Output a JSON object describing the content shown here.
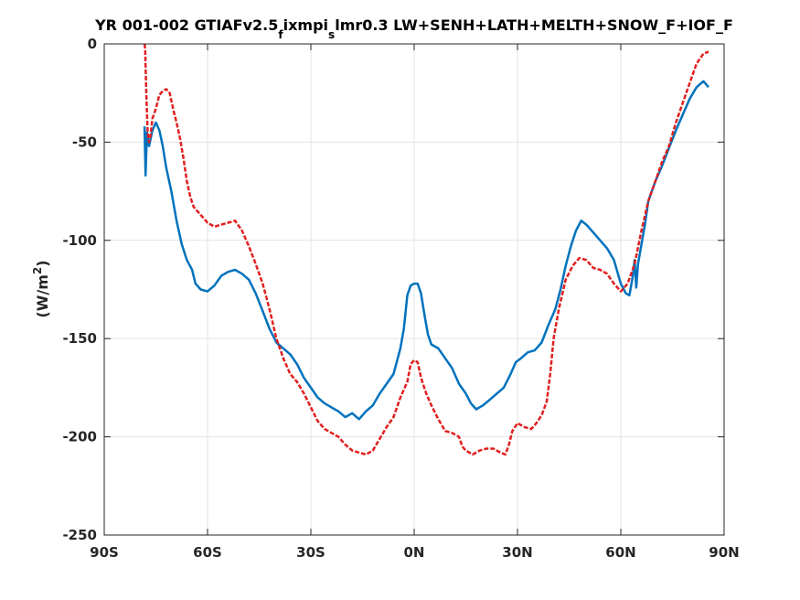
{
  "chart_data": {
    "type": "line",
    "title": {
      "part1": "YR 001-002 GTIAFv2.5",
      "sub1": "f",
      "part2": "ixmpi",
      "sub2": "s",
      "part3": "lmr0.3 LW+SENH+LATH+MELTH+SNOW_F+IOF_F"
    },
    "xlabel": "",
    "ylabel": {
      "main": "(W/m",
      "sup": "2",
      "close": ")"
    },
    "xlim": [
      -90,
      90
    ],
    "ylim": [
      -250,
      0
    ],
    "xticks": [
      {
        "value": -90,
        "label": "90S"
      },
      {
        "value": -60,
        "label": "60S"
      },
      {
        "value": -30,
        "label": "30S"
      },
      {
        "value": 0,
        "label": "0N"
      },
      {
        "value": 30,
        "label": "30N"
      },
      {
        "value": 60,
        "label": "60N"
      },
      {
        "value": 90,
        "label": "90N"
      }
    ],
    "yticks": [
      {
        "value": 0,
        "label": "0"
      },
      {
        "value": -50,
        "label": "-50"
      },
      {
        "value": -100,
        "label": "-100"
      },
      {
        "value": -150,
        "label": "-150"
      },
      {
        "value": -200,
        "label": "-200"
      },
      {
        "value": -250,
        "label": "-250"
      }
    ],
    "grid": true,
    "series": [
      {
        "color": "#0072BD",
        "style": "solid",
        "points": [
          [
            -78.3,
            -42
          ],
          [
            -78.0,
            -67
          ],
          [
            -77.6,
            -45
          ],
          [
            -77.0,
            -52
          ],
          [
            -76.0,
            -44
          ],
          [
            -75.0,
            -40
          ],
          [
            -74.0,
            -44
          ],
          [
            -73.0,
            -52
          ],
          [
            -72.0,
            -63
          ],
          [
            -70.5,
            -75
          ],
          [
            -69.0,
            -90
          ],
          [
            -67.5,
            -102
          ],
          [
            -66.0,
            -110
          ],
          [
            -64.5,
            -115
          ],
          [
            -63.5,
            -122
          ],
          [
            -62.0,
            -125
          ],
          [
            -60.0,
            -126
          ],
          [
            -58.0,
            -123
          ],
          [
            -56.0,
            -118
          ],
          [
            -54.0,
            -116
          ],
          [
            -52.0,
            -115
          ],
          [
            -50.0,
            -117
          ],
          [
            -48.0,
            -120
          ],
          [
            -46.0,
            -127
          ],
          [
            -44.0,
            -136
          ],
          [
            -42.0,
            -145
          ],
          [
            -40.0,
            -152
          ],
          [
            -38.0,
            -155
          ],
          [
            -36.0,
            -158
          ],
          [
            -34.0,
            -163
          ],
          [
            -32.0,
            -170
          ],
          [
            -30.0,
            -175
          ],
          [
            -28.0,
            -180
          ],
          [
            -26.0,
            -183
          ],
          [
            -24.0,
            -185
          ],
          [
            -22.0,
            -187
          ],
          [
            -20.0,
            -190
          ],
          [
            -18.0,
            -188
          ],
          [
            -16.0,
            -191
          ],
          [
            -14.0,
            -187
          ],
          [
            -12.0,
            -184
          ],
          [
            -10.0,
            -178
          ],
          [
            -8.0,
            -173
          ],
          [
            -6.0,
            -168
          ],
          [
            -4.0,
            -155
          ],
          [
            -3.0,
            -145
          ],
          [
            -2.0,
            -128
          ],
          [
            -1.0,
            -123
          ],
          [
            0.0,
            -122
          ],
          [
            1.0,
            -122
          ],
          [
            2.0,
            -127
          ],
          [
            3.0,
            -138
          ],
          [
            4.0,
            -148
          ],
          [
            5.0,
            -153
          ],
          [
            7.0,
            -155
          ],
          [
            9.0,
            -160
          ],
          [
            11.0,
            -165
          ],
          [
            13.0,
            -173
          ],
          [
            15.0,
            -178
          ],
          [
            16.5,
            -183
          ],
          [
            18.0,
            -186
          ],
          [
            20.0,
            -184
          ],
          [
            22.0,
            -181
          ],
          [
            24.0,
            -178
          ],
          [
            26.0,
            -175
          ],
          [
            28.0,
            -168
          ],
          [
            29.5,
            -162
          ],
          [
            31.0,
            -160
          ],
          [
            33.0,
            -157
          ],
          [
            35.0,
            -156
          ],
          [
            37.0,
            -152
          ],
          [
            39.0,
            -143
          ],
          [
            41.0,
            -135
          ],
          [
            42.5,
            -125
          ],
          [
            44.0,
            -113
          ],
          [
            45.5,
            -103
          ],
          [
            47.0,
            -95
          ],
          [
            48.5,
            -90
          ],
          [
            50.0,
            -92
          ],
          [
            52.0,
            -96
          ],
          [
            54.0,
            -100
          ],
          [
            56.0,
            -104
          ],
          [
            58.0,
            -110
          ],
          [
            60.0,
            -122
          ],
          [
            61.5,
            -127
          ],
          [
            62.5,
            -128
          ],
          [
            63.5,
            -118
          ],
          [
            64.0,
            -110
          ],
          [
            64.5,
            -124
          ],
          [
            65.0,
            -112
          ],
          [
            66.0,
            -102
          ],
          [
            67.0,
            -92
          ],
          [
            68.0,
            -80
          ],
          [
            70.0,
            -70
          ],
          [
            72.0,
            -62
          ],
          [
            74.0,
            -53
          ],
          [
            76.0,
            -44
          ],
          [
            78.0,
            -36
          ],
          [
            80.0,
            -28
          ],
          [
            82.0,
            -22
          ],
          [
            84.0,
            -19
          ],
          [
            85.5,
            -22
          ]
        ]
      },
      {
        "color": "#E11F1F",
        "style": "dashed",
        "points": [
          [
            -78.3,
            0
          ],
          [
            -78.1,
            -3
          ],
          [
            -77.8,
            -25
          ],
          [
            -77.4,
            -45
          ],
          [
            -77.0,
            -50
          ],
          [
            -76.5,
            -46
          ],
          [
            -76.0,
            -38
          ],
          [
            -75.0,
            -33
          ],
          [
            -74.0,
            -26
          ],
          [
            -73.0,
            -24
          ],
          [
            -72.0,
            -23
          ],
          [
            -71.0,
            -25
          ],
          [
            -70.0,
            -33
          ],
          [
            -69.0,
            -40
          ],
          [
            -68.0,
            -48
          ],
          [
            -67.0,
            -58
          ],
          [
            -66.0,
            -70
          ],
          [
            -65.0,
            -78
          ],
          [
            -64.0,
            -83
          ],
          [
            -62.0,
            -87
          ],
          [
            -60.0,
            -91
          ],
          [
            -58.0,
            -93
          ],
          [
            -56.0,
            -92
          ],
          [
            -54.0,
            -91
          ],
          [
            -52.0,
            -90
          ],
          [
            -50.0,
            -95
          ],
          [
            -48.0,
            -103
          ],
          [
            -46.0,
            -112
          ],
          [
            -44.0,
            -122
          ],
          [
            -42.0,
            -135
          ],
          [
            -40.0,
            -150
          ],
          [
            -38.0,
            -160
          ],
          [
            -36.0,
            -168
          ],
          [
            -34.0,
            -172
          ],
          [
            -32.0,
            -178
          ],
          [
            -30.0,
            -185
          ],
          [
            -28.0,
            -192
          ],
          [
            -26.0,
            -196
          ],
          [
            -24.0,
            -198
          ],
          [
            -22.0,
            -200
          ],
          [
            -20.0,
            -204
          ],
          [
            -18.0,
            -207
          ],
          [
            -16.0,
            -208
          ],
          [
            -14.0,
            -209
          ],
          [
            -12.0,
            -207
          ],
          [
            -10.0,
            -201
          ],
          [
            -8.0,
            -195
          ],
          [
            -6.0,
            -190
          ],
          [
            -4.0,
            -180
          ],
          [
            -2.0,
            -172
          ],
          [
            -1.0,
            -163
          ],
          [
            0.0,
            -161
          ],
          [
            1.0,
            -162
          ],
          [
            2.0,
            -170
          ],
          [
            3.5,
            -178
          ],
          [
            5.0,
            -184
          ],
          [
            7.0,
            -191
          ],
          [
            9.0,
            -197
          ],
          [
            11.0,
            -198
          ],
          [
            13.0,
            -200
          ],
          [
            14.0,
            -205
          ],
          [
            15.0,
            -207
          ],
          [
            17.0,
            -209
          ],
          [
            19.0,
            -207
          ],
          [
            21.0,
            -206
          ],
          [
            23.0,
            -206
          ],
          [
            25.0,
            -208
          ],
          [
            26.5,
            -209
          ],
          [
            27.5,
            -204
          ],
          [
            28.5,
            -197
          ],
          [
            30.0,
            -193
          ],
          [
            32.0,
            -195
          ],
          [
            34.0,
            -196
          ],
          [
            35.5,
            -193
          ],
          [
            37.0,
            -189
          ],
          [
            38.5,
            -182
          ],
          [
            39.5,
            -168
          ],
          [
            40.5,
            -150
          ],
          [
            42.0,
            -135
          ],
          [
            44.0,
            -120
          ],
          [
            46.0,
            -113
          ],
          [
            48.0,
            -109
          ],
          [
            50.0,
            -110
          ],
          [
            52.0,
            -114
          ],
          [
            54.0,
            -115
          ],
          [
            56.0,
            -117
          ],
          [
            58.0,
            -122
          ],
          [
            60.0,
            -126
          ],
          [
            62.0,
            -122
          ],
          [
            64.0,
            -112
          ],
          [
            66.0,
            -95
          ],
          [
            68.0,
            -80
          ],
          [
            70.0,
            -70
          ],
          [
            72.0,
            -60
          ],
          [
            74.0,
            -52
          ],
          [
            76.0,
            -40
          ],
          [
            78.0,
            -30
          ],
          [
            80.0,
            -20
          ],
          [
            82.0,
            -10
          ],
          [
            84.0,
            -5
          ],
          [
            85.5,
            -4
          ]
        ]
      }
    ]
  }
}
